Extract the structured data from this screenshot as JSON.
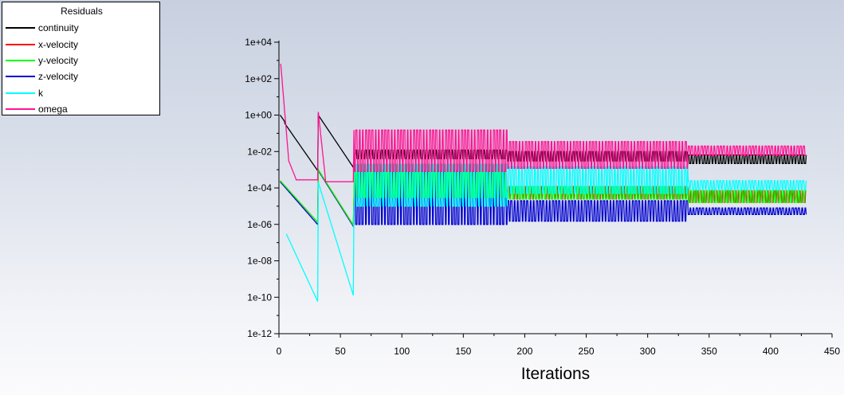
{
  "chart_data": {
    "type": "line",
    "title": "",
    "xlabel": "Iterations",
    "ylabel": "",
    "xlim": [
      0,
      450
    ],
    "ylim_log10": [
      -12,
      4
    ],
    "yscale": "log",
    "x_ticks": [
      0,
      50,
      100,
      150,
      200,
      250,
      300,
      350,
      400,
      450
    ],
    "y_ticks": [
      "1e+04",
      "1e+02",
      "1e+00",
      "1e-02",
      "1e-04",
      "1e-06",
      "1e-08",
      "1e-10",
      "1e-12"
    ],
    "legend": {
      "title": "Residuals",
      "placement": "top-left"
    },
    "series": [
      {
        "name": "continuity",
        "color": "#000000",
        "segments": [
          {
            "x_start": 1,
            "x_end": 61,
            "y_start": 1.0,
            "y_end": 0.0015
          },
          {
            "x_start": 61,
            "x_end": 186,
            "y_low": 0.004,
            "y_high": 0.012
          },
          {
            "x_start": 186,
            "x_end": 333,
            "y_low": 0.003,
            "y_high": 0.01
          },
          {
            "x_start": 333,
            "x_end": 429,
            "y_low": 0.0022,
            "y_high": 0.0065
          }
        ]
      },
      {
        "name": "x-velocity",
        "color": "#ff0000"
      },
      {
        "name": "y-velocity",
        "color": "#00ff00"
      },
      {
        "name": "z-velocity",
        "color": "#0000cd"
      },
      {
        "name": "k",
        "color": "#00ffff"
      },
      {
        "name": "omega",
        "color": "#ff1493"
      }
    ],
    "iterations_total": 429,
    "restart_iterations": [
      32,
      61
    ]
  }
}
